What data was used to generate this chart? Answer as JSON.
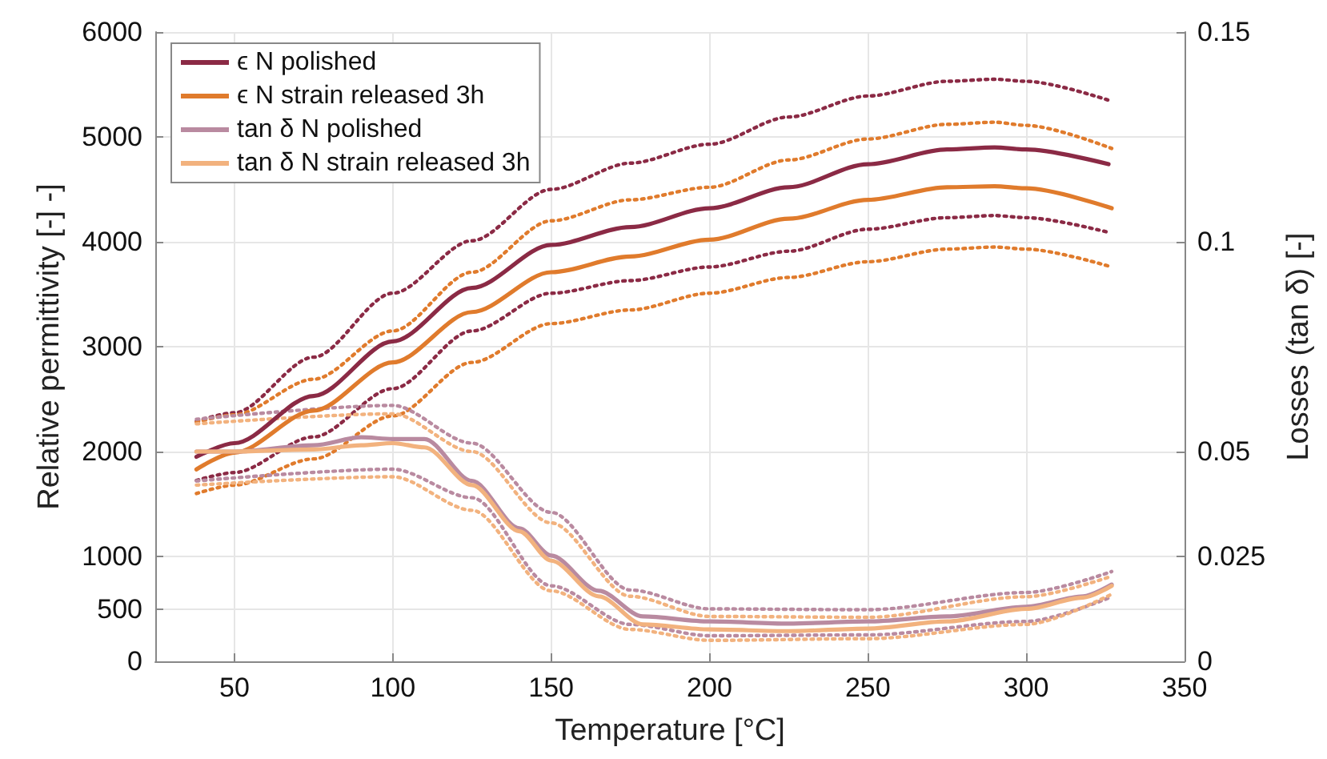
{
  "chart_data": {
    "type": "line",
    "xlabel": "Temperature [°C]",
    "ylabel": "Relative permittivity [-] -]",
    "y2label": "Losses (tan δ) [-]",
    "xlim": [
      25,
      350
    ],
    "xticks": [
      50,
      100,
      150,
      200,
      250,
      300,
      350
    ],
    "ylim": [
      0,
      6000
    ],
    "yticks": [
      0,
      500,
      1000,
      2000,
      3000,
      4000,
      5000,
      6000
    ],
    "y2lim": [
      0,
      0.15
    ],
    "y2ticks": [
      0,
      0.025,
      0.05,
      0.1,
      0.15
    ],
    "grid": true,
    "legend": "top left",
    "marker": "none",
    "series": [
      {
        "name": "ϵ N polished",
        "color": "#8b2a45",
        "line_style": "solid",
        "x": [
          38,
          50,
          75,
          100,
          125,
          150,
          175,
          200,
          225,
          250,
          275,
          290,
          300,
          326
        ],
        "values": [
          1950,
          2080,
          2530,
          3050,
          3560,
          3970,
          4140,
          4320,
          4520,
          4740,
          4880,
          4900,
          4880,
          4740
        ]
      },
      {
        "name": "ϵ N strain released 3h",
        "color": "#e07b2c",
        "line_style": "solid",
        "x": [
          38,
          50,
          75,
          100,
          125,
          150,
          175,
          200,
          225,
          250,
          275,
          290,
          300,
          327
        ],
        "values": [
          1830,
          1990,
          2390,
          2850,
          3330,
          3710,
          3860,
          4020,
          4220,
          4400,
          4520,
          4530,
          4510,
          4320
        ]
      },
      {
        "name": "tan δ N polished",
        "color": "#b98aa0",
        "line_style": "solid",
        "axis": "y2",
        "x": [
          38,
          50,
          75,
          90,
          100,
          110,
          125,
          140,
          150,
          165,
          179,
          200,
          225,
          250,
          275,
          300,
          318,
          327
        ],
        "values": [
          0.05,
          0.05,
          0.0515,
          0.0534,
          0.053,
          0.053,
          0.043,
          0.0317,
          0.0252,
          0.0168,
          0.0107,
          0.0095,
          0.009,
          0.0095,
          0.0107,
          0.013,
          0.0155,
          0.0183
        ]
      },
      {
        "name": "tan δ N strain released 3h",
        "color": "#f2b27e",
        "line_style": "solid",
        "axis": "y2",
        "x": [
          38,
          50,
          75,
          90,
          100,
          110,
          125,
          140,
          150,
          165,
          179,
          200,
          225,
          250,
          275,
          300,
          318,
          327
        ],
        "values": [
          0.05,
          0.05,
          0.0505,
          0.0515,
          0.052,
          0.051,
          0.042,
          0.031,
          0.024,
          0.0155,
          0.0088,
          0.0076,
          0.0072,
          0.0078,
          0.0095,
          0.0125,
          0.0152,
          0.018
        ]
      },
      {
        "color": "#8b2a45",
        "line_style": "dotted",
        "x": [
          38,
          50,
          75,
          100,
          125,
          150,
          175,
          200,
          225,
          250,
          275,
          290,
          300,
          326
        ],
        "values": [
          2290,
          2370,
          2900,
          3510,
          4010,
          4500,
          4750,
          4930,
          5190,
          5390,
          5530,
          5550,
          5530,
          5350
        ]
      },
      {
        "color": "#8b2a45",
        "line_style": "dotted",
        "x": [
          38,
          50,
          75,
          100,
          125,
          150,
          175,
          200,
          225,
          250,
          275,
          290,
          300,
          326
        ],
        "values": [
          1725,
          1800,
          2140,
          2600,
          3150,
          3510,
          3630,
          3760,
          3910,
          4120,
          4230,
          4250,
          4230,
          4090
        ]
      },
      {
        "color": "#e07b2c",
        "line_style": "dotted",
        "x": [
          38,
          50,
          75,
          100,
          125,
          150,
          175,
          200,
          225,
          250,
          275,
          290,
          300,
          327
        ],
        "values": [
          2280,
          2350,
          2690,
          3150,
          3710,
          4200,
          4400,
          4520,
          4780,
          4980,
          5120,
          5140,
          5110,
          4890
        ]
      },
      {
        "color": "#e07b2c",
        "line_style": "dotted",
        "x": [
          38,
          50,
          75,
          100,
          125,
          150,
          175,
          200,
          225,
          250,
          275,
          290,
          300,
          327
        ],
        "values": [
          1600,
          1680,
          1930,
          2340,
          2850,
          3220,
          3350,
          3510,
          3660,
          3810,
          3930,
          3950,
          3930,
          3760
        ]
      },
      {
        "color": "#b98aa0",
        "line_style": "dotted",
        "axis": "y2",
        "x": [
          38,
          100,
          125,
          150,
          175,
          200,
          250,
          300,
          327
        ],
        "values": [
          0.0577,
          0.061,
          0.052,
          0.0355,
          0.017,
          0.0125,
          0.0123,
          0.0164,
          0.0214
        ]
      },
      {
        "color": "#b98aa0",
        "line_style": "dotted",
        "axis": "y2",
        "x": [
          38,
          100,
          125,
          150,
          175,
          200,
          250,
          300,
          327
        ],
        "values": [
          0.043,
          0.0458,
          0.039,
          0.018,
          0.0088,
          0.0061,
          0.0063,
          0.0095,
          0.0154
        ]
      },
      {
        "color": "#f2b27e",
        "line_style": "dotted",
        "axis": "y2",
        "x": [
          38,
          100,
          125,
          150,
          175,
          200,
          250,
          300,
          327
        ],
        "values": [
          0.0566,
          0.059,
          0.05,
          0.033,
          0.0155,
          0.0107,
          0.0105,
          0.0154,
          0.0203
        ]
      },
      {
        "color": "#f2b27e",
        "line_style": "dotted",
        "axis": "y2",
        "x": [
          38,
          100,
          125,
          150,
          175,
          200,
          250,
          300,
          327
        ],
        "values": [
          0.042,
          0.044,
          0.036,
          0.0168,
          0.0076,
          0.005,
          0.0054,
          0.0088,
          0.016
        ]
      }
    ]
  }
}
